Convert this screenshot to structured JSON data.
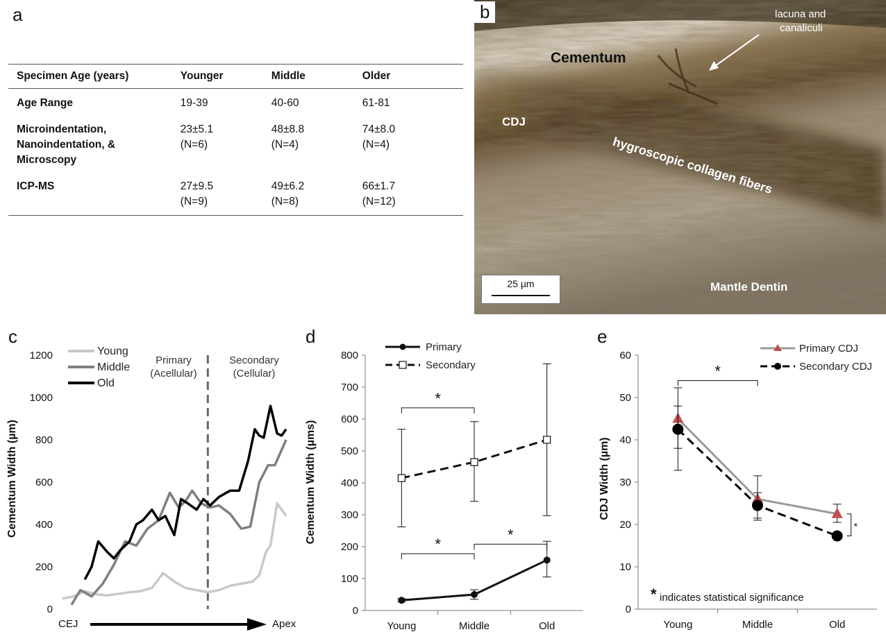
{
  "panel_labels": {
    "a": "a",
    "b": "b",
    "c": "c",
    "d": "d",
    "e": "e"
  },
  "table": {
    "headers": [
      "Specimen Age (years)",
      "Younger",
      "Middle",
      "Older"
    ],
    "rows": [
      {
        "label": "Age Range",
        "cells": [
          "19-39",
          "40-60",
          "61-81"
        ]
      },
      {
        "label": "Microindentation, Nanoindentation, & Microscopy",
        "cells": [
          "23±5.1 (N=6)",
          "48±8.8 (N=4)",
          "74±8.0 (N=4)"
        ]
      },
      {
        "label": "ICP-MS",
        "cells": [
          "27±9.5 (N=9)",
          "49±6.2 (N=8)",
          "66±1.7 (N=12)"
        ]
      }
    ]
  },
  "micrograph": {
    "labels": {
      "cementum": "Cementum",
      "lacuna_line1": "lacuna and",
      "lacuna_line2": "canaliculi",
      "cdj": "CDJ",
      "collagen": "hygroscopic collagen fibers",
      "mantle": "Mantle Dentin"
    },
    "scale_bar": "25 µm"
  },
  "chart_data": [
    {
      "panel": "c",
      "type": "line",
      "ylabel": "Cementum Width (µm)",
      "ylim": [
        0,
        1200
      ],
      "yticks": [
        0,
        200,
        400,
        600,
        800,
        1000,
        1200
      ],
      "x_start_label": "CEJ",
      "x_end_label": "Apex",
      "xlim": [
        0,
        1
      ],
      "divider_x": 0.65,
      "region_labels": {
        "primary_1": "Primary",
        "primary_2": "(Acellular)",
        "secondary_1": "Secondary",
        "secondary_2": "(Cellular)"
      },
      "legend_position": "top-left",
      "series": [
        {
          "name": "Young",
          "color": "#c8c8c8",
          "x": [
            0,
            0.05,
            0.1,
            0.15,
            0.2,
            0.25,
            0.3,
            0.35,
            0.4,
            0.45,
            0.5,
            0.55,
            0.6,
            0.65,
            0.7,
            0.75,
            0.8,
            0.85,
            0.88,
            0.91,
            0.93,
            0.96,
            1.0
          ],
          "y": [
            50,
            60,
            85,
            70,
            65,
            72,
            80,
            85,
            100,
            170,
            130,
            100,
            90,
            80,
            90,
            110,
            120,
            130,
            160,
            270,
            300,
            500,
            440
          ]
        },
        {
          "name": "Middle",
          "color": "#7f7f7f",
          "x": [
            0.04,
            0.08,
            0.13,
            0.18,
            0.23,
            0.28,
            0.33,
            0.38,
            0.43,
            0.48,
            0.52,
            0.55,
            0.58,
            0.62,
            0.66,
            0.7,
            0.75,
            0.8,
            0.84,
            0.88,
            0.92,
            0.95,
            1.0
          ],
          "y": [
            20,
            90,
            60,
            120,
            210,
            320,
            300,
            380,
            420,
            550,
            480,
            510,
            560,
            500,
            480,
            490,
            450,
            380,
            390,
            600,
            680,
            680,
            800
          ]
        },
        {
          "name": "Old",
          "color": "#000000",
          "x": [
            0.1,
            0.13,
            0.16,
            0.2,
            0.23,
            0.26,
            0.3,
            0.33,
            0.36,
            0.4,
            0.43,
            0.46,
            0.5,
            0.53,
            0.56,
            0.6,
            0.63,
            0.66,
            0.7,
            0.75,
            0.79,
            0.83,
            0.86,
            0.88,
            0.9,
            0.93,
            0.96,
            0.98,
            1.0
          ],
          "y": [
            140,
            200,
            320,
            270,
            240,
            280,
            320,
            400,
            420,
            470,
            420,
            440,
            350,
            520,
            500,
            470,
            520,
            490,
            530,
            560,
            560,
            700,
            850,
            820,
            810,
            960,
            830,
            820,
            850
          ]
        }
      ]
    },
    {
      "panel": "d",
      "type": "line",
      "ylabel": "Cementum Width (µms)",
      "ylim": [
        0,
        800
      ],
      "yticks": [
        0,
        100,
        200,
        300,
        400,
        500,
        600,
        700,
        800
      ],
      "categories": [
        "Young",
        "Middle",
        "Old"
      ],
      "legend_position": "top-left",
      "series": [
        {
          "name": "Primary",
          "style": "solid",
          "marker": "circle",
          "values": [
            32,
            50,
            158
          ],
          "err_low": [
            27,
            35,
            105
          ],
          "err_high": [
            37,
            65,
            217
          ]
        },
        {
          "name": "Secondary",
          "style": "dashed",
          "marker": "square",
          "values": [
            415,
            465,
            535
          ],
          "err_low": [
            262,
            342,
            297
          ],
          "err_high": [
            568,
            592,
            773
          ]
        }
      ],
      "significance": [
        {
          "from": 0,
          "to": 1,
          "y": 635,
          "label": "*"
        },
        {
          "from": 0,
          "to": 1,
          "y": 178,
          "label": "*"
        },
        {
          "from": 1,
          "to": 2,
          "y": 208,
          "label": "*"
        }
      ]
    },
    {
      "panel": "e",
      "type": "line",
      "ylabel": "CDJ Width (µm)",
      "ylim": [
        0,
        60
      ],
      "yticks": [
        0,
        10,
        20,
        30,
        40,
        50,
        60
      ],
      "categories": [
        "Young",
        "Middle",
        "Old"
      ],
      "legend_position": "top-right",
      "series": [
        {
          "name": "Primary CDJ",
          "style": "solid",
          "color": "#999999",
          "marker_color": "#c0504d",
          "marker": "triangle",
          "values": [
            45,
            26,
            22.5
          ],
          "err_low": [
            38,
            21,
            20.5
          ],
          "err_high": [
            52.3,
            31.5,
            24.8
          ]
        },
        {
          "name": "Secondary CDJ",
          "style": "dashed",
          "color": "#000000",
          "marker": "circle",
          "values": [
            42.5,
            24.5,
            17.3
          ],
          "err_low": [
            32.8,
            21.5,
            17
          ],
          "err_high": [
            48,
            27.5,
            18
          ]
        }
      ],
      "significance": [
        {
          "from": 0,
          "to": 1,
          "y": 54,
          "label": "*"
        }
      ],
      "side_significance": "*",
      "footnote_star": "*",
      "footnote_text": "indicates statistical significance"
    }
  ]
}
